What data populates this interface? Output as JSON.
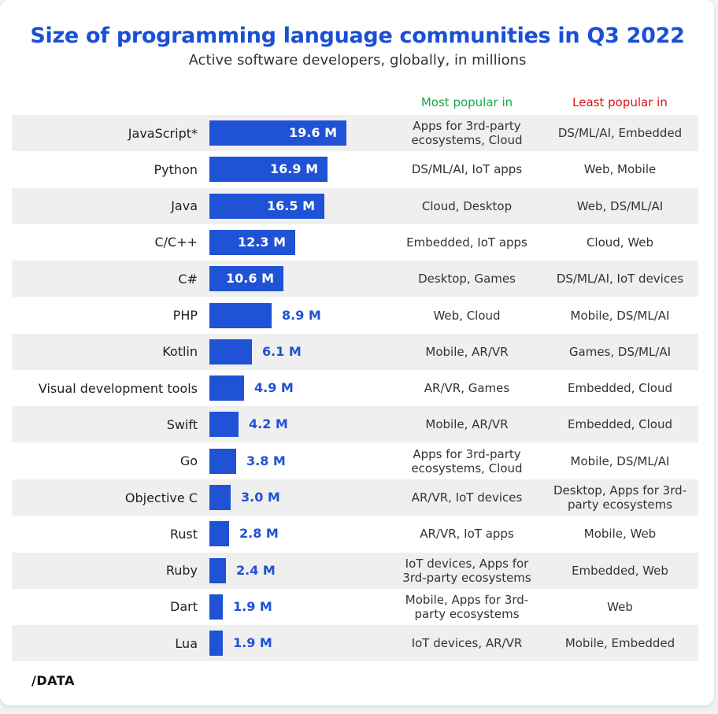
{
  "brand": {
    "logo_text": "/DATA"
  },
  "header": {
    "most_popular_label": "Most popular in",
    "least_popular_label": "Least popular in"
  },
  "chart_data": {
    "type": "bar",
    "title": "Size of programming language communities in Q3 2022",
    "subtitle": "Active software developers, globally, in millions",
    "unit": "M",
    "orientation": "horizontal",
    "colors": {
      "bar": "#1f52d4",
      "title": "#1a4fd6",
      "most": "#1aa848",
      "least": "#e01010"
    },
    "rows": [
      {
        "language": "JavaScript*",
        "value": 19.6,
        "label": "19.6 M",
        "most_popular": "Apps for 3rd-party ecosystems, Cloud",
        "least_popular": "DS/ML/AI, Embedded"
      },
      {
        "language": "Python",
        "value": 16.9,
        "label": "16.9 M",
        "most_popular": "DS/ML/AI, IoT apps",
        "least_popular": "Web, Mobile"
      },
      {
        "language": "Java",
        "value": 16.5,
        "label": "16.5 M",
        "most_popular": "Cloud, Desktop",
        "least_popular": "Web, DS/ML/AI"
      },
      {
        "language": "C/C++",
        "value": 12.3,
        "label": "12.3 M",
        "most_popular": "Embedded, IoT apps",
        "least_popular": "Cloud, Web"
      },
      {
        "language": "C#",
        "value": 10.6,
        "label": "10.6 M",
        "most_popular": "Desktop, Games",
        "least_popular": "DS/ML/AI, IoT devices"
      },
      {
        "language": "PHP",
        "value": 8.9,
        "label": "8.9 M",
        "most_popular": "Web, Cloud",
        "least_popular": "Mobile, DS/ML/AI"
      },
      {
        "language": "Kotlin",
        "value": 6.1,
        "label": "6.1 M",
        "most_popular": "Mobile, AR/VR",
        "least_popular": "Games, DS/ML/AI"
      },
      {
        "language": "Visual development tools",
        "value": 4.9,
        "label": "4.9 M",
        "most_popular": "AR/VR, Games",
        "least_popular": "Embedded, Cloud"
      },
      {
        "language": "Swift",
        "value": 4.2,
        "label": "4.2 M",
        "most_popular": "Mobile, AR/VR",
        "least_popular": "Embedded, Cloud"
      },
      {
        "language": "Go",
        "value": 3.8,
        "label": "3.8 M",
        "most_popular": "Apps for 3rd-party ecosystems, Cloud",
        "least_popular": "Mobile, DS/ML/AI"
      },
      {
        "language": "Objective C",
        "value": 3.0,
        "label": "3.0 M",
        "most_popular": "AR/VR, IoT devices",
        "least_popular": "Desktop, Apps for 3rd-party ecosystems"
      },
      {
        "language": "Rust",
        "value": 2.8,
        "label": "2.8 M",
        "most_popular": "AR/VR, IoT apps",
        "least_popular": "Mobile, Web"
      },
      {
        "language": "Ruby",
        "value": 2.4,
        "label": "2.4 M",
        "most_popular": "IoT devices, Apps for 3rd-party ecosystems",
        "least_popular": "Embedded, Web"
      },
      {
        "language": "Dart",
        "value": 1.9,
        "label": "1.9 M",
        "most_popular": "Mobile, Apps for 3rd-party ecosystems",
        "least_popular": "Web"
      },
      {
        "language": "Lua",
        "value": 1.9,
        "label": "1.9 M",
        "most_popular": "IoT devices, AR/VR",
        "least_popular": "Mobile, Embedded"
      }
    ]
  }
}
